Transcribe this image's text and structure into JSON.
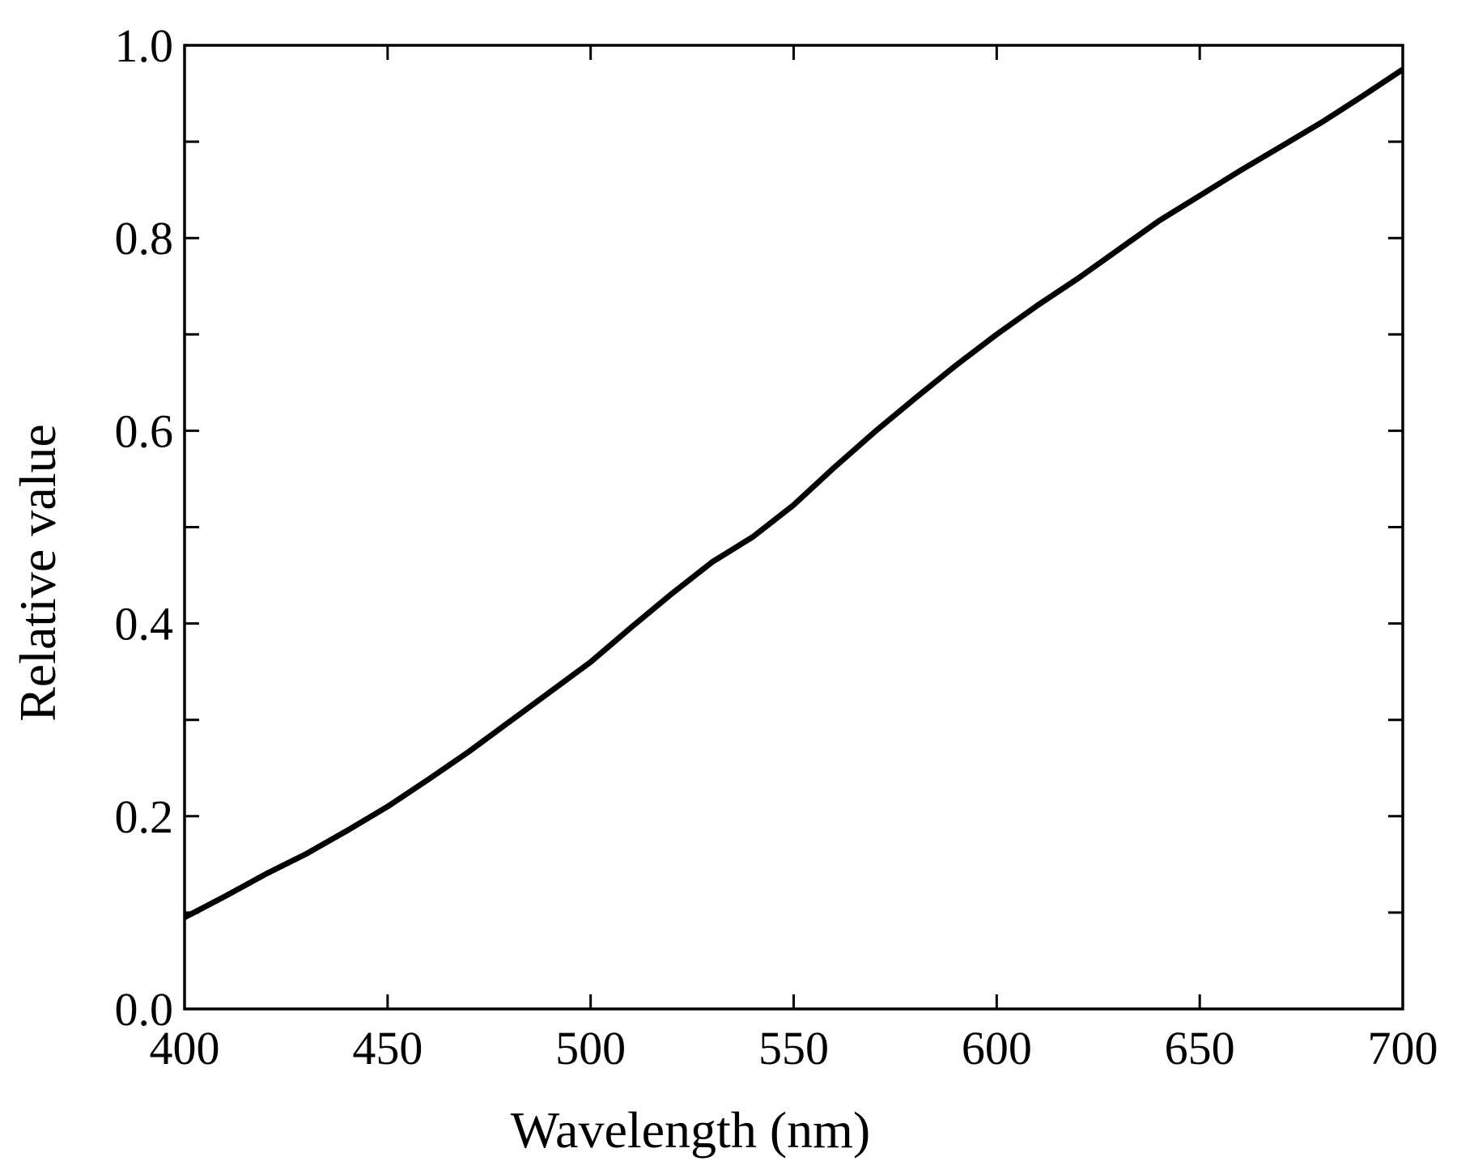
{
  "chart_data": {
    "type": "line",
    "title": "",
    "xlabel": "Wavelength (nm)",
    "ylabel": "Relative value",
    "xlim": [
      400,
      700
    ],
    "ylim": [
      0.0,
      1.0
    ],
    "grid": false,
    "x_ticks": [
      400,
      450,
      500,
      550,
      600,
      650,
      700
    ],
    "x_tick_labels": [
      "400",
      "450",
      "500",
      "550",
      "600",
      "650",
      "700"
    ],
    "y_ticks": [
      0.0,
      0.2,
      0.4,
      0.6,
      0.8,
      1.0
    ],
    "y_tick_labels": [
      "0.0",
      "0.2",
      "0.4",
      "0.6",
      "0.8",
      "1.0"
    ],
    "y_minor_ticks": [
      0.1,
      0.3,
      0.5,
      0.7,
      0.9
    ],
    "series": [
      {
        "color": "#000000",
        "x": [
          400,
          410,
          420,
          430,
          440,
          450,
          460,
          470,
          480,
          490,
          500,
          510,
          520,
          530,
          540,
          550,
          560,
          570,
          580,
          590,
          600,
          610,
          620,
          630,
          640,
          650,
          660,
          670,
          680,
          690,
          700
        ],
        "y": [
          0.095,
          0.117,
          0.14,
          0.161,
          0.185,
          0.21,
          0.238,
          0.267,
          0.298,
          0.329,
          0.36,
          0.396,
          0.431,
          0.464,
          0.49,
          0.523,
          0.562,
          0.599,
          0.634,
          0.668,
          0.7,
          0.73,
          0.758,
          0.788,
          0.818,
          0.844,
          0.87,
          0.895,
          0.92,
          0.947,
          0.975
        ]
      }
    ]
  }
}
